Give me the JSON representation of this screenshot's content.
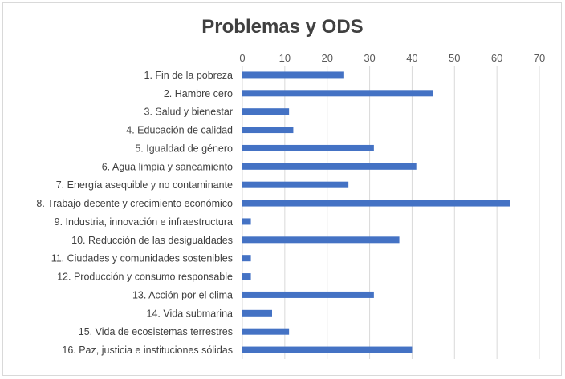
{
  "chart_data": {
    "type": "bar",
    "orientation": "horizontal",
    "title": "Problemas y ODS",
    "xlabel": "",
    "ylabel": "",
    "xlim": [
      0,
      70
    ],
    "ticks": [
      0,
      10,
      20,
      30,
      40,
      50,
      60,
      70
    ],
    "axis_position": "top",
    "grid": true,
    "legend": "none",
    "bar_color": "#4472c4",
    "categories": [
      "1. Fin de la pobreza",
      "2. Hambre cero",
      "3. Salud y bienestar",
      "4. Educación de calidad",
      "5. Igualdad de género",
      "6. Agua limpia y saneamiento",
      "7. Energía asequible y no contaminante",
      "8. Trabajo decente y crecimiento económico",
      "9. Industria, innovación e infraestructura",
      "10. Reducción de las desigualdades",
      "11. Ciudades y comunidades sostenibles",
      "12. Producción y consumo responsable",
      "13. Acción por el clima",
      "14. Vida submarina",
      "15. Vida de ecosistemas terrestres",
      "16. Paz, justicia e instituciones sólidas"
    ],
    "values": [
      24,
      45,
      11,
      12,
      31,
      41,
      25,
      63,
      2,
      37,
      2,
      2,
      31,
      7,
      11,
      40
    ]
  }
}
